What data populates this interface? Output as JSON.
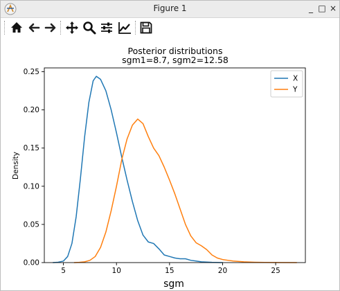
{
  "window": {
    "title": "Figure 1",
    "controls": [
      "_",
      "□",
      "×"
    ]
  },
  "toolbar": {
    "buttons": [
      {
        "icon": "home-icon",
        "name": "home"
      },
      {
        "icon": "arrow-left-icon",
        "name": "back"
      },
      {
        "icon": "arrow-right-icon",
        "name": "forward"
      },
      {
        "icon": "move-icon",
        "name": "pan"
      },
      {
        "icon": "zoom-icon",
        "name": "zoom"
      },
      {
        "icon": "sliders-icon",
        "name": "configure-subplots"
      },
      {
        "icon": "line-chart-icon",
        "name": "edit-axis"
      },
      {
        "icon": "save-icon",
        "name": "save"
      }
    ]
  },
  "chart_data": {
    "type": "line",
    "title": "Posterior distributions",
    "subtitle": "sgm1=8.7,  sgm2=12.58",
    "xlabel": "sgm",
    "ylabel": "Density",
    "xlim": [
      3.2,
      27.8
    ],
    "ylim": [
      0,
      0.255
    ],
    "xticks": [
      5,
      10,
      15,
      20,
      25
    ],
    "xtick_labels": [
      "5",
      "10",
      "15",
      "20",
      "25"
    ],
    "yticks": [
      0.0,
      0.05,
      0.1,
      0.15,
      0.2,
      0.25
    ],
    "ytick_labels": [
      "0.00",
      "0.05",
      "0.10",
      "0.15",
      "0.20",
      "0.25"
    ],
    "grid": false,
    "legend": "top-right",
    "series": [
      {
        "name": "X",
        "color": "#1f77b4",
        "points": [
          [
            4.0,
            0.0
          ],
          [
            4.5,
            0.0005
          ],
          [
            5.0,
            0.002
          ],
          [
            5.4,
            0.008
          ],
          [
            5.8,
            0.025
          ],
          [
            6.2,
            0.06
          ],
          [
            6.6,
            0.11
          ],
          [
            7.0,
            0.165
          ],
          [
            7.4,
            0.21
          ],
          [
            7.8,
            0.238
          ],
          [
            8.1,
            0.244
          ],
          [
            8.5,
            0.24
          ],
          [
            9.0,
            0.225
          ],
          [
            9.5,
            0.2
          ],
          [
            10.0,
            0.17
          ],
          [
            10.5,
            0.138
          ],
          [
            11.0,
            0.108
          ],
          [
            11.5,
            0.08
          ],
          [
            12.0,
            0.055
          ],
          [
            12.5,
            0.036
          ],
          [
            13.0,
            0.027
          ],
          [
            13.5,
            0.025
          ],
          [
            14.0,
            0.018
          ],
          [
            14.5,
            0.01
          ],
          [
            15.0,
            0.008
          ],
          [
            15.5,
            0.006
          ],
          [
            16.0,
            0.005
          ],
          [
            16.5,
            0.005
          ],
          [
            17.0,
            0.003
          ],
          [
            17.5,
            0.002
          ],
          [
            18.0,
            0.001
          ],
          [
            19.0,
            0.0003
          ],
          [
            20.0,
            0.0
          ]
        ]
      },
      {
        "name": "Y",
        "color": "#ff7f0e",
        "points": [
          [
            6.0,
            0.0
          ],
          [
            6.5,
            0.0003
          ],
          [
            7.0,
            0.001
          ],
          [
            7.5,
            0.003
          ],
          [
            8.0,
            0.008
          ],
          [
            8.5,
            0.02
          ],
          [
            9.0,
            0.04
          ],
          [
            9.5,
            0.068
          ],
          [
            10.0,
            0.1
          ],
          [
            10.5,
            0.135
          ],
          [
            11.0,
            0.162
          ],
          [
            11.5,
            0.18
          ],
          [
            12.0,
            0.188
          ],
          [
            12.5,
            0.182
          ],
          [
            13.0,
            0.165
          ],
          [
            13.5,
            0.15
          ],
          [
            14.0,
            0.14
          ],
          [
            14.5,
            0.125
          ],
          [
            15.0,
            0.108
          ],
          [
            15.5,
            0.09
          ],
          [
            16.0,
            0.07
          ],
          [
            16.5,
            0.05
          ],
          [
            17.0,
            0.035
          ],
          [
            17.5,
            0.026
          ],
          [
            18.0,
            0.022
          ],
          [
            18.5,
            0.017
          ],
          [
            19.0,
            0.01
          ],
          [
            19.5,
            0.006
          ],
          [
            20.0,
            0.004
          ],
          [
            20.5,
            0.003
          ],
          [
            21.0,
            0.002
          ],
          [
            22.0,
            0.001
          ],
          [
            23.0,
            0.0005
          ],
          [
            24.0,
            0.0002
          ],
          [
            25.0,
            0.0001
          ],
          [
            27.0,
            0.0
          ]
        ]
      }
    ]
  }
}
